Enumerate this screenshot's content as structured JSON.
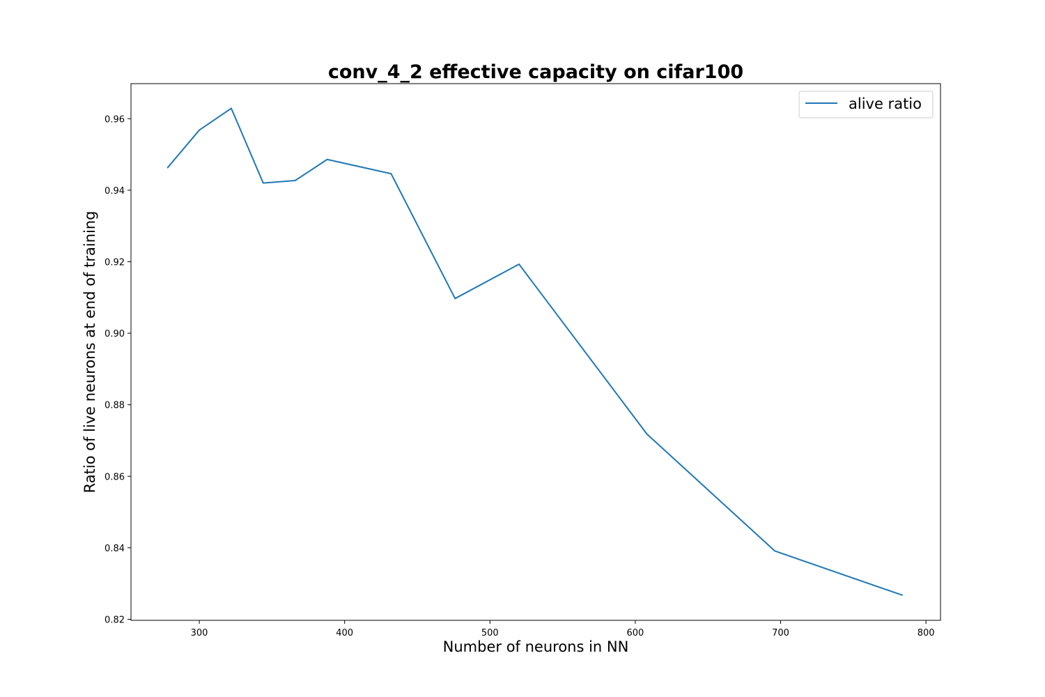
{
  "chart_data": {
    "type": "line",
    "title": "conv_4_2 effective capacity on cifar100",
    "xlabel": "Number of neurons in NN",
    "ylabel": "Ratio of live neurons at end of training",
    "xlim": [
      253,
      810
    ],
    "ylim": [
      0.8197,
      0.9698
    ],
    "xticks": [
      300,
      400,
      500,
      600,
      700,
      800
    ],
    "xtick_labels": [
      "300",
      "400",
      "500",
      "600",
      "700",
      "800"
    ],
    "yticks": [
      0.82,
      0.84,
      0.86,
      0.88,
      0.9,
      0.92,
      0.94,
      0.96
    ],
    "ytick_labels": [
      "0.82",
      "0.84",
      "0.86",
      "0.88",
      "0.90",
      "0.92",
      "0.94",
      "0.96"
    ],
    "grid": false,
    "legend_position": "top-right",
    "series": [
      {
        "name": "alive ratio",
        "color": "#1f77b4",
        "x": [
          278,
          300,
          322,
          344,
          366,
          388,
          432,
          476,
          520,
          608,
          696,
          784
        ],
        "y": [
          0.9462,
          0.9568,
          0.9629,
          0.942,
          0.9427,
          0.9486,
          0.9446,
          0.9097,
          0.9193,
          0.8718,
          0.8391,
          0.8267
        ]
      }
    ]
  }
}
